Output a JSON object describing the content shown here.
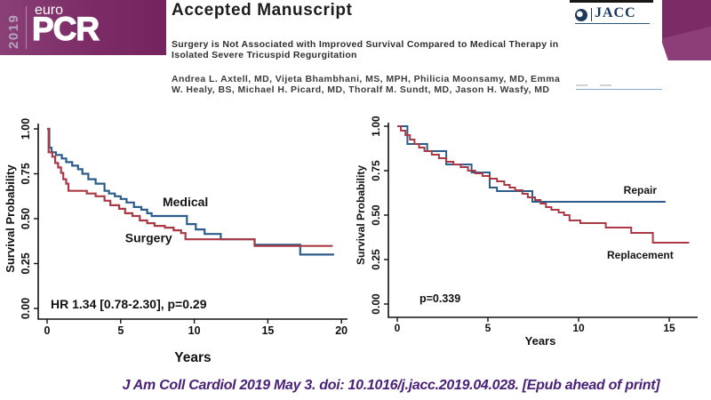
{
  "slide": {
    "year_badge": "2019",
    "logo": {
      "euro": "euro",
      "pcr": "PCR"
    },
    "citation": "J Am Coll Cardiol 2019 May 3. doi: 10.1016/j.jacc.2019.04.028. [Epub ahead of print]",
    "colors": {
      "band": "#7c2b66",
      "band_light": "#8d3e78",
      "citation": "#4a2178"
    }
  },
  "manuscript": {
    "header": "Accepted Manuscript",
    "title_lines": [
      "Surgery is Not Associated with Improved Survival Compared to Medical Therapy in",
      "Isolated Severe Tricuspid Regurgitation"
    ],
    "author_lines": [
      "Andrea L. Axtell, MD, Vijeta Bhambhani, MS, MPH, Philicia Moonsamy, MD, Emma",
      "W. Healy, BS, Michael H. Picard, MD, Thoralf M. Sundt, MD, Jason H. Wasfy, MD"
    ],
    "journal_logo": "JACC"
  },
  "chart_data": [
    {
      "type": "line",
      "subtype": "kaplan-meier-step",
      "xlabel": "Years",
      "ylabel": "Survival Probability",
      "xlim": [
        0,
        20
      ],
      "ylim": [
        0,
        1
      ],
      "xticks": [
        0,
        5,
        10,
        15,
        20
      ],
      "yticks": [
        "0.00",
        "0.25",
        "0.50",
        "0.75",
        "1.00"
      ],
      "annotation": "HR 1.34 [0.78-2.30], p=0.29",
      "grid": false,
      "series": [
        {
          "name": "Medical",
          "color": "#2b5c8c",
          "label_pos": [
            9.4,
            0.57
          ],
          "points": [
            [
              0,
              1.0
            ],
            [
              0.15,
              0.895
            ],
            [
              0.3,
              0.87
            ],
            [
              0.6,
              0.855
            ],
            [
              1.0,
              0.835
            ],
            [
              1.3,
              0.815
            ],
            [
              1.7,
              0.795
            ],
            [
              2.1,
              0.775
            ],
            [
              2.4,
              0.75
            ],
            [
              2.8,
              0.72
            ],
            [
              3.3,
              0.695
            ],
            [
              3.9,
              0.655
            ],
            [
              4.2,
              0.64
            ],
            [
              4.6,
              0.625
            ],
            [
              5.0,
              0.61
            ],
            [
              5.4,
              0.59
            ],
            [
              5.9,
              0.565
            ],
            [
              6.4,
              0.55
            ],
            [
              6.8,
              0.53
            ],
            [
              7.1,
              0.515
            ],
            [
              9.5,
              0.47
            ],
            [
              10.1,
              0.44
            ],
            [
              10.7,
              0.415
            ],
            [
              11.8,
              0.385
            ],
            [
              14.1,
              0.355
            ],
            [
              17.2,
              0.3
            ],
            [
              19.5,
              0.3
            ]
          ]
        },
        {
          "name": "Surgery",
          "color": "#a93a45",
          "label_pos": [
            6.9,
            0.37
          ],
          "points": [
            [
              0,
              1.0
            ],
            [
              0.1,
              0.87
            ],
            [
              0.35,
              0.845
            ],
            [
              0.55,
              0.81
            ],
            [
              0.75,
              0.785
            ],
            [
              0.95,
              0.755
            ],
            [
              1.1,
              0.72
            ],
            [
              1.3,
              0.695
            ],
            [
              1.45,
              0.655
            ],
            [
              2.7,
              0.64
            ],
            [
              3.3,
              0.625
            ],
            [
              3.9,
              0.6
            ],
            [
              4.3,
              0.575
            ],
            [
              4.9,
              0.555
            ],
            [
              5.3,
              0.53
            ],
            [
              5.8,
              0.515
            ],
            [
              6.3,
              0.49
            ],
            [
              6.8,
              0.475
            ],
            [
              7.3,
              0.46
            ],
            [
              8.0,
              0.45
            ],
            [
              8.6,
              0.435
            ],
            [
              9.1,
              0.42
            ],
            [
              9.4,
              0.385
            ],
            [
              14.1,
              0.348
            ],
            [
              19.4,
              0.348
            ]
          ]
        }
      ]
    },
    {
      "type": "line",
      "subtype": "kaplan-meier-step",
      "xlabel": "Years",
      "ylabel": "Survival Probability",
      "xlim": [
        0,
        16
      ],
      "ylim": [
        0,
        1
      ],
      "xticks": [
        0,
        5,
        10,
        15
      ],
      "yticks": [
        "0.00",
        "0.25",
        "0.50",
        "0.75",
        "1.00"
      ],
      "annotation": "p=0.339",
      "grid": false,
      "series": [
        {
          "name": "Repair",
          "color": "#2b5c8c",
          "label_pos": [
            13.4,
            0.62
          ],
          "points": [
            [
              0,
              1.0
            ],
            [
              0.56,
              0.9
            ],
            [
              1.65,
              0.86
            ],
            [
              2.7,
              0.785
            ],
            [
              4.1,
              0.74
            ],
            [
              5.1,
              0.655
            ],
            [
              5.5,
              0.635
            ],
            [
              7.45,
              0.575
            ],
            [
              14.8,
              0.575
            ]
          ]
        },
        {
          "name": "Replacement",
          "color": "#a93a45",
          "label_pos": [
            13.4,
            0.255
          ],
          "points": [
            [
              0,
              1.0
            ],
            [
              0.2,
              0.975
            ],
            [
              0.45,
              0.95
            ],
            [
              0.7,
              0.925
            ],
            [
              0.95,
              0.9
            ],
            [
              1.2,
              0.88
            ],
            [
              1.5,
              0.86
            ],
            [
              1.9,
              0.84
            ],
            [
              2.3,
              0.82
            ],
            [
              2.7,
              0.8
            ],
            [
              3.1,
              0.785
            ],
            [
              3.5,
              0.77
            ],
            [
              3.9,
              0.75
            ],
            [
              4.3,
              0.735
            ],
            [
              4.7,
              0.72
            ],
            [
              5.1,
              0.705
            ],
            [
              5.5,
              0.69
            ],
            [
              5.9,
              0.67
            ],
            [
              6.2,
              0.655
            ],
            [
              6.5,
              0.64
            ],
            [
              6.9,
              0.62
            ],
            [
              7.2,
              0.6
            ],
            [
              7.6,
              0.585
            ],
            [
              7.9,
              0.565
            ],
            [
              8.2,
              0.545
            ],
            [
              8.5,
              0.53
            ],
            [
              8.9,
              0.515
            ],
            [
              9.2,
              0.5
            ],
            [
              9.5,
              0.47
            ],
            [
              10.1,
              0.455
            ],
            [
              11.5,
              0.43
            ],
            [
              12.9,
              0.4
            ],
            [
              14.1,
              0.345
            ],
            [
              16.1,
              0.345
            ]
          ]
        }
      ]
    }
  ]
}
